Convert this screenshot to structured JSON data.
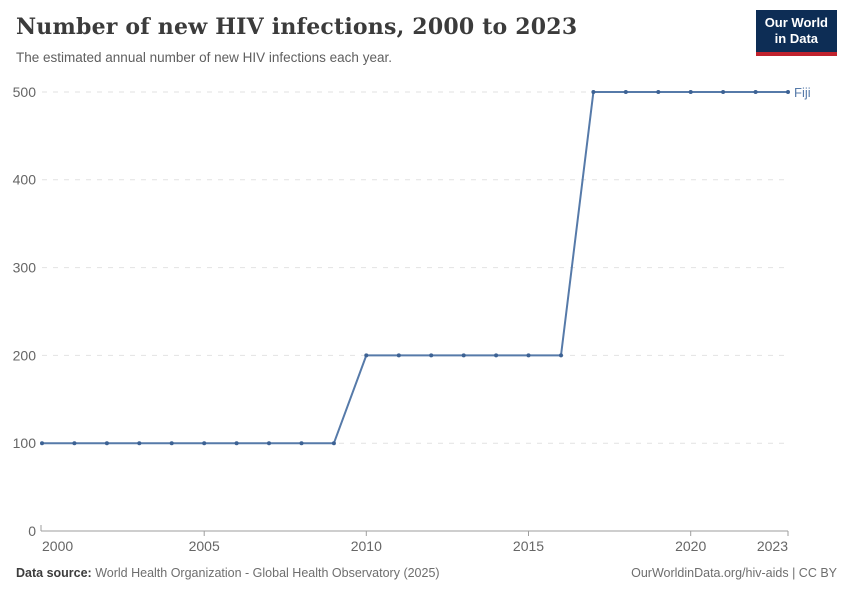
{
  "header": {
    "title": "Number of new HIV infections, 2000 to 2023",
    "subtitle": "The estimated annual number of new HIV infections each year.",
    "logo_line1": "Our World",
    "logo_line2": "in Data"
  },
  "colors": {
    "line": "#567aa9",
    "point": "#3d6294",
    "grid": "#e2e2e2",
    "axis": "#9e9e9e",
    "tick_text": "#666666",
    "title_text": "#3b3b3b",
    "subtitle_text": "#5f5f5f",
    "logo_bg": "#0d2d55",
    "logo_red": "#c0222d",
    "entity_label": "#567aa9"
  },
  "chart_data": {
    "type": "line",
    "title": "Number of new HIV infections, 2000 to 2023",
    "subtitle": "The estimated annual number of new HIV infections each year.",
    "x": [
      2000,
      2001,
      2002,
      2003,
      2004,
      2005,
      2006,
      2007,
      2008,
      2009,
      2010,
      2011,
      2012,
      2013,
      2014,
      2015,
      2016,
      2017,
      2018,
      2019,
      2020,
      2021,
      2022,
      2023
    ],
    "series": [
      {
        "name": "Fiji",
        "values": [
          100,
          100,
          100,
          100,
          100,
          100,
          100,
          100,
          100,
          100,
          200,
          200,
          200,
          200,
          200,
          200,
          200,
          500,
          500,
          500,
          500,
          500,
          500,
          500
        ]
      }
    ],
    "xlabel": "",
    "ylabel": "",
    "xlim": [
      2000,
      2023
    ],
    "ylim": [
      0,
      500
    ],
    "yticks": [
      0,
      100,
      200,
      300,
      400,
      500
    ],
    "xticks": [
      2000,
      2005,
      2010,
      2015,
      2020,
      2023
    ],
    "grid": "dashed-horizontal",
    "legend_position": "end-of-line-label",
    "markers": true
  },
  "footer": {
    "source_label": "Data source:",
    "source_text": " World Health Organization - Global Health Observatory (2025)",
    "right_text": "OurWorldinData.org/hiv-aids | CC BY"
  }
}
